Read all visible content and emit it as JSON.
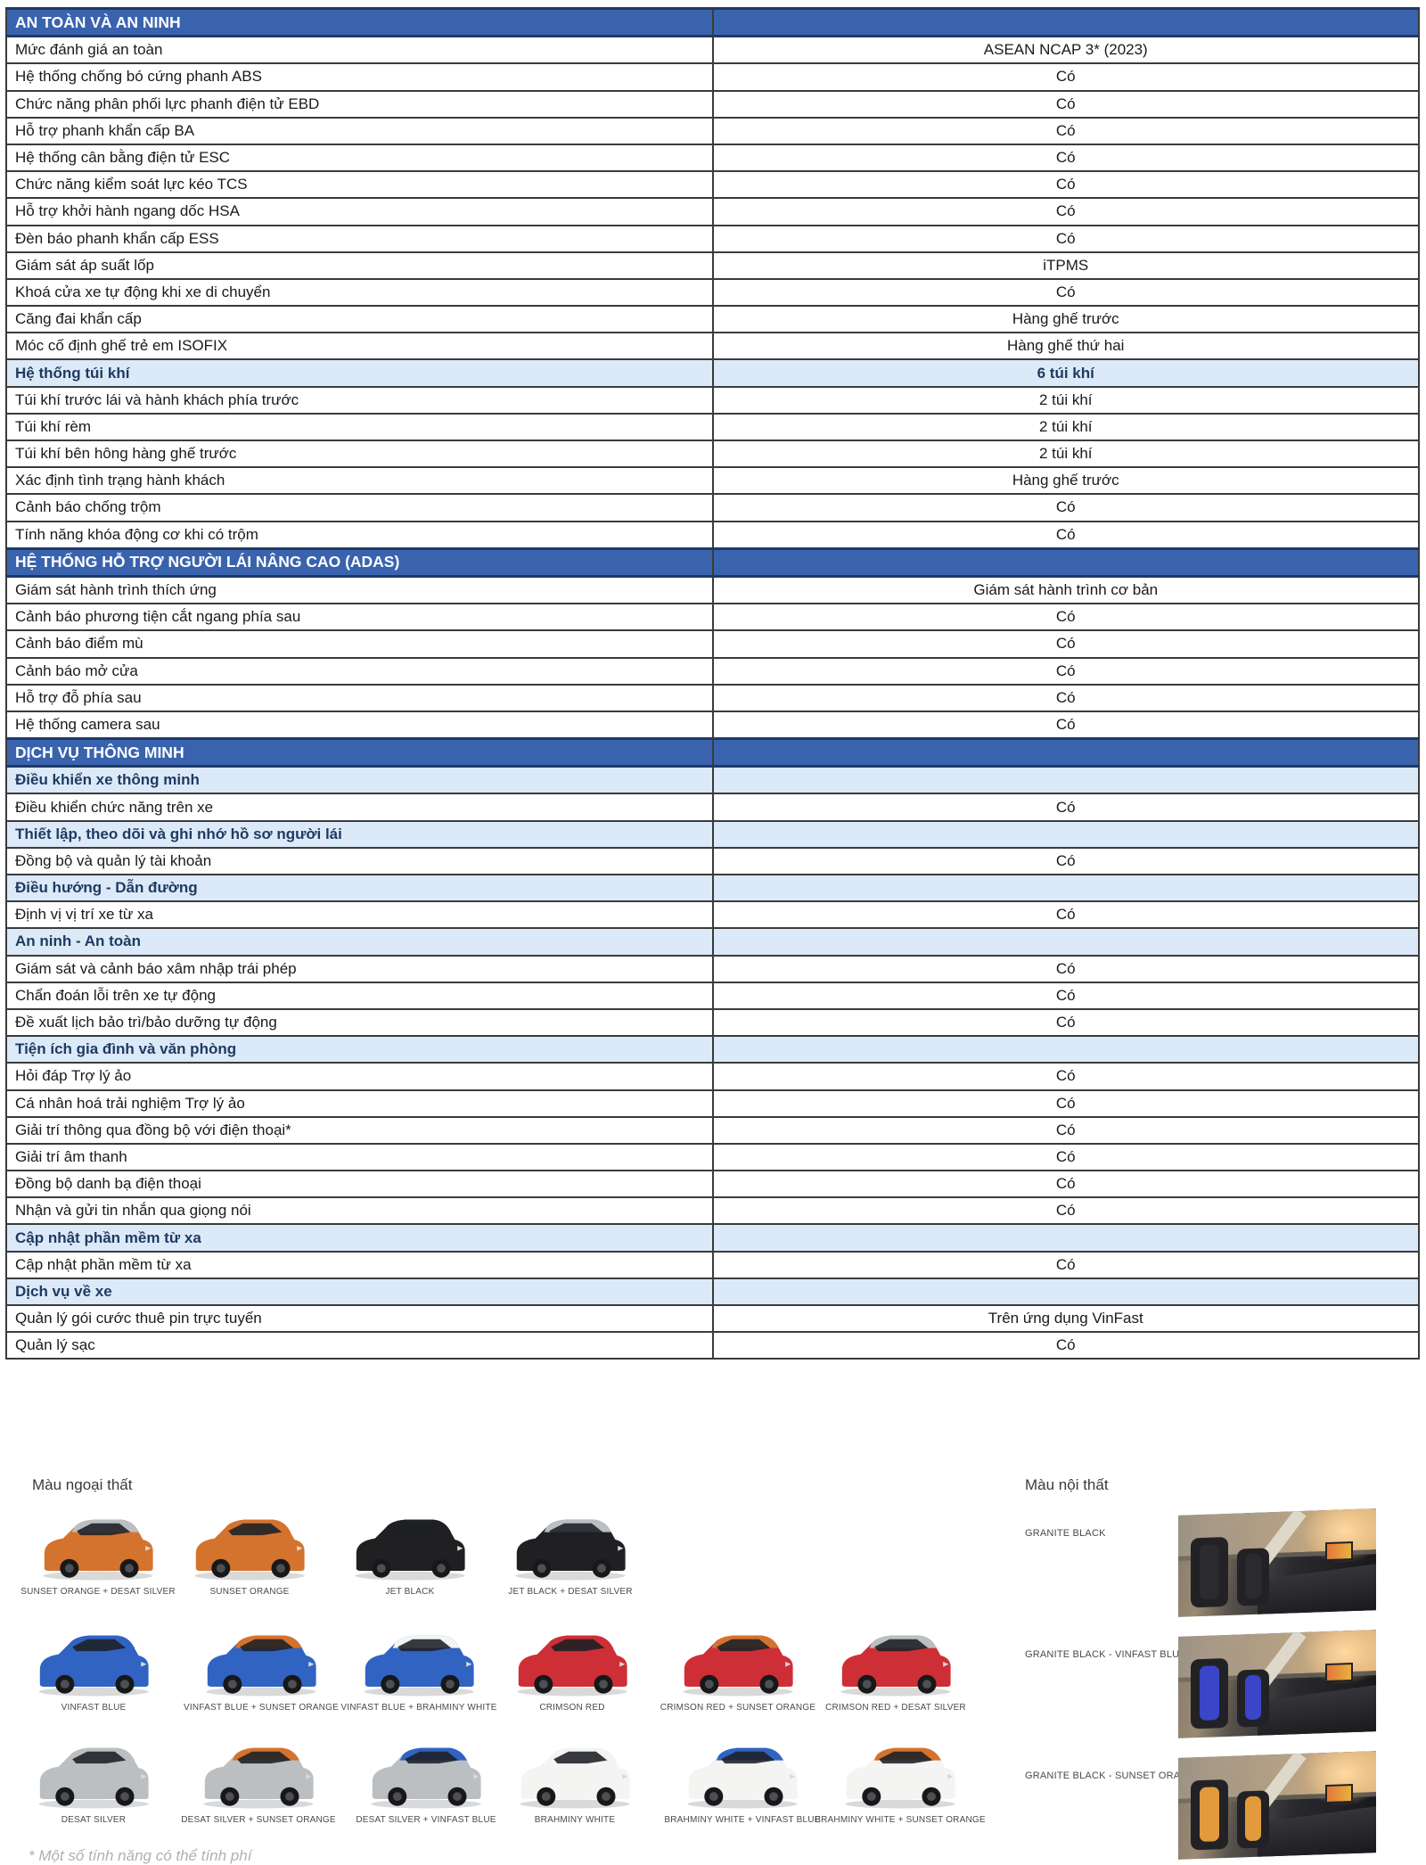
{
  "colors": {
    "section_header_bg": "#3A63AE",
    "section_header_border": "#1F3864",
    "subheader_bg": "#DCE9F8",
    "subheader_text": "#1E3A5F",
    "grid_border": "#3b3b3b"
  },
  "table": {
    "rows": [
      {
        "type": "section",
        "label": "AN TOÀN VÀ AN NINH",
        "value": ""
      },
      {
        "type": "row",
        "label": "Mức đánh giá an toàn",
        "value": "ASEAN NCAP 3* (2023)"
      },
      {
        "type": "row",
        "label": "Hệ thống chống bó cứng phanh ABS",
        "value": "Có"
      },
      {
        "type": "row",
        "label": "Chức năng phân phối lực phanh điện tử EBD",
        "value": "Có"
      },
      {
        "type": "row",
        "label": "Hỗ trợ phanh khẩn cấp BA",
        "value": "Có"
      },
      {
        "type": "row",
        "label": "Hệ thống cân bằng điện tử ESC",
        "value": "Có"
      },
      {
        "type": "row",
        "label": "Chức năng kiểm soát lực kéo TCS",
        "value": "Có"
      },
      {
        "type": "row",
        "label": "Hỗ trợ khởi hành ngang dốc HSA",
        "value": "Có"
      },
      {
        "type": "row",
        "label": "Đèn báo phanh khẩn cấp ESS",
        "value": "Có"
      },
      {
        "type": "row",
        "label": "Giám sát áp suất lốp",
        "value": "iTPMS"
      },
      {
        "type": "row",
        "label": "Khoá cửa xe tự động khi xe di chuyển",
        "value": "Có"
      },
      {
        "type": "row",
        "label": "Căng đai khẩn cấp",
        "value": "Hàng ghế trước"
      },
      {
        "type": "row",
        "label": "Móc cố định ghế trẻ em ISOFIX",
        "value": "Hàng ghế thứ hai"
      },
      {
        "type": "sub",
        "label": "Hệ thống túi khí",
        "value": "6 túi khí"
      },
      {
        "type": "row",
        "label": "Túi khí trước lái và hành khách phía trước",
        "value": "2 túi khí"
      },
      {
        "type": "row",
        "label": "Túi khí rèm",
        "value": "2 túi khí"
      },
      {
        "type": "row",
        "label": "Túi khí bên hông hàng ghế trước",
        "value": "2 túi khí"
      },
      {
        "type": "row",
        "label": "Xác định tình trạng hành khách",
        "value": "Hàng ghế trước"
      },
      {
        "type": "row",
        "label": "Cảnh báo chống trộm",
        "value": "Có"
      },
      {
        "type": "row",
        "label": "Tính năng khóa động cơ khi có trộm",
        "value": "Có"
      },
      {
        "type": "section",
        "label": "HỆ THỐNG HỖ TRỢ NGƯỜI LÁI NÂNG CAO (ADAS)",
        "value": ""
      },
      {
        "type": "row",
        "label": "Giám sát hành trình thích ứng",
        "value": "Giám sát hành trình cơ bản"
      },
      {
        "type": "row",
        "label": "Cảnh báo phương tiện cắt ngang phía sau",
        "value": "Có"
      },
      {
        "type": "row",
        "label": "Cảnh báo điểm mù",
        "value": "Có"
      },
      {
        "type": "row",
        "label": "Cảnh báo mở cửa",
        "value": "Có"
      },
      {
        "type": "row",
        "label": "Hỗ trợ đỗ phía sau",
        "value": "Có"
      },
      {
        "type": "row",
        "label": "Hệ thống camera sau",
        "value": "Có"
      },
      {
        "type": "section",
        "label": "DỊCH VỤ THÔNG MINH",
        "value": ""
      },
      {
        "type": "sub",
        "label": "Điều khiển xe thông minh",
        "value": ""
      },
      {
        "type": "row",
        "label": "Điều khiển chức năng trên xe",
        "value": "Có"
      },
      {
        "type": "sub",
        "label": "Thiết lập, theo dõi và ghi nhớ hồ sơ người lái",
        "value": ""
      },
      {
        "type": "row",
        "label": "Đồng bộ và quản lý tài khoản",
        "value": "Có"
      },
      {
        "type": "sub",
        "label": "Điều hướng - Dẫn đường",
        "value": ""
      },
      {
        "type": "row",
        "label": "Định vị vị trí xe từ xa",
        "value": "Có"
      },
      {
        "type": "sub",
        "label": "An ninh - An toàn",
        "value": ""
      },
      {
        "type": "row",
        "label": "Giám sát và cảnh báo xâm nhập trái phép",
        "value": "Có"
      },
      {
        "type": "row",
        "label": "Chẩn đoán lỗi trên xe tự động",
        "value": "Có"
      },
      {
        "type": "row",
        "label": "Đề xuất lịch bảo trì/bảo dưỡng tự động",
        "value": "Có"
      },
      {
        "type": "sub",
        "label": "Tiện ích gia đình và văn phòng",
        "value": ""
      },
      {
        "type": "row",
        "label": "Hỏi đáp Trợ lý ảo",
        "value": "Có"
      },
      {
        "type": "row",
        "label": "Cá nhân hoá trải nghiệm Trợ lý ảo",
        "value": "Có"
      },
      {
        "type": "row",
        "label": "Giải trí thông qua đồng bộ với điện thoại*",
        "value": "Có"
      },
      {
        "type": "row",
        "label": "Giải trí âm thanh",
        "value": "Có"
      },
      {
        "type": "row",
        "label": "Đồng bộ danh bạ điện thoại",
        "value": "Có"
      },
      {
        "type": "row",
        "label": "Nhận và gửi tin nhắn qua giọng nói",
        "value": "Có"
      },
      {
        "type": "sub",
        "label": "Cập nhật phần mềm từ xa",
        "value": ""
      },
      {
        "type": "row",
        "label": "Cập nhật phần mềm từ xa",
        "value": "Có"
      },
      {
        "type": "sub",
        "label": "Dịch vụ về xe",
        "value": ""
      },
      {
        "type": "row",
        "label": "Quản lý gói cước thuê pin trực tuyến",
        "value": "Trên ứng dụng VinFast"
      },
      {
        "type": "row",
        "label": "Quản lý sạc",
        "value": "Có"
      }
    ]
  },
  "exterior": {
    "title": "Màu ngoại thất",
    "rows": [
      [
        {
          "label": "SUNSET ORANGE + DESAT SILVER",
          "body": "#D4732E",
          "roof": "#BCBFC1"
        },
        {
          "label": "SUNSET ORANGE",
          "body": "#D4732E",
          "roof": "#D4732E"
        },
        {
          "label": "JET BLACK",
          "body": "#202023",
          "roof": "#202023"
        },
        {
          "label": "JET BLACK + DESAT SILVER",
          "body": "#202023",
          "roof": "#BCBFC1"
        }
      ],
      [
        {
          "label": "VINFAST BLUE",
          "body": "#3163C2",
          "roof": "#3163C2"
        },
        {
          "label": "VINFAST BLUE + SUNSET ORANGE",
          "body": "#3163C2",
          "roof": "#D4732E"
        },
        {
          "label": "VINFAST BLUE + BRAHMINY WHITE",
          "body": "#3163C2",
          "roof": "#F4F4F2"
        },
        {
          "label": "CRIMSON RED",
          "body": "#CE2F36",
          "roof": "#CE2F36"
        },
        {
          "label": "CRIMSON RED + SUNSET ORANGE",
          "body": "#CE2F36",
          "roof": "#D4732E"
        },
        {
          "label": "CRIMSON RED + DESAT SILVER",
          "body": "#CE2F36",
          "roof": "#BCBFC1"
        }
      ],
      [
        {
          "label": "DESAT SILVER",
          "body": "#BCBFC1",
          "roof": "#BCBFC1"
        },
        {
          "label": "DESAT SILVER + SUNSET ORANGE",
          "body": "#BCBFC1",
          "roof": "#D4732E"
        },
        {
          "label": "DESAT SILVER + VINFAST BLUE",
          "body": "#BCBFC1",
          "roof": "#3163C2"
        },
        {
          "label": "BRAHMINY WHITE",
          "body": "#F4F4F2",
          "roof": "#F4F4F2"
        },
        {
          "label": "BRAHMINY WHITE + VINFAST BLUE",
          "body": "#F4F4F2",
          "roof": "#3163C2"
        },
        {
          "label": "BRAHMINY WHITE + SUNSET ORANGE",
          "body": "#F4F4F2",
          "roof": "#D4732E"
        }
      ]
    ]
  },
  "interior": {
    "title": "Màu nội thất",
    "items": [
      {
        "label": "GRANITE BLACK",
        "seat": "#2b2b2f"
      },
      {
        "label": "GRANITE BLACK - VINFAST BLUE",
        "seat": "#3a45c8"
      },
      {
        "label": "GRANITE BLACK - SUNSET ORANGE",
        "seat": "#E29A3C"
      }
    ]
  },
  "footnote": "* Một số tính năng có thể tính phí"
}
